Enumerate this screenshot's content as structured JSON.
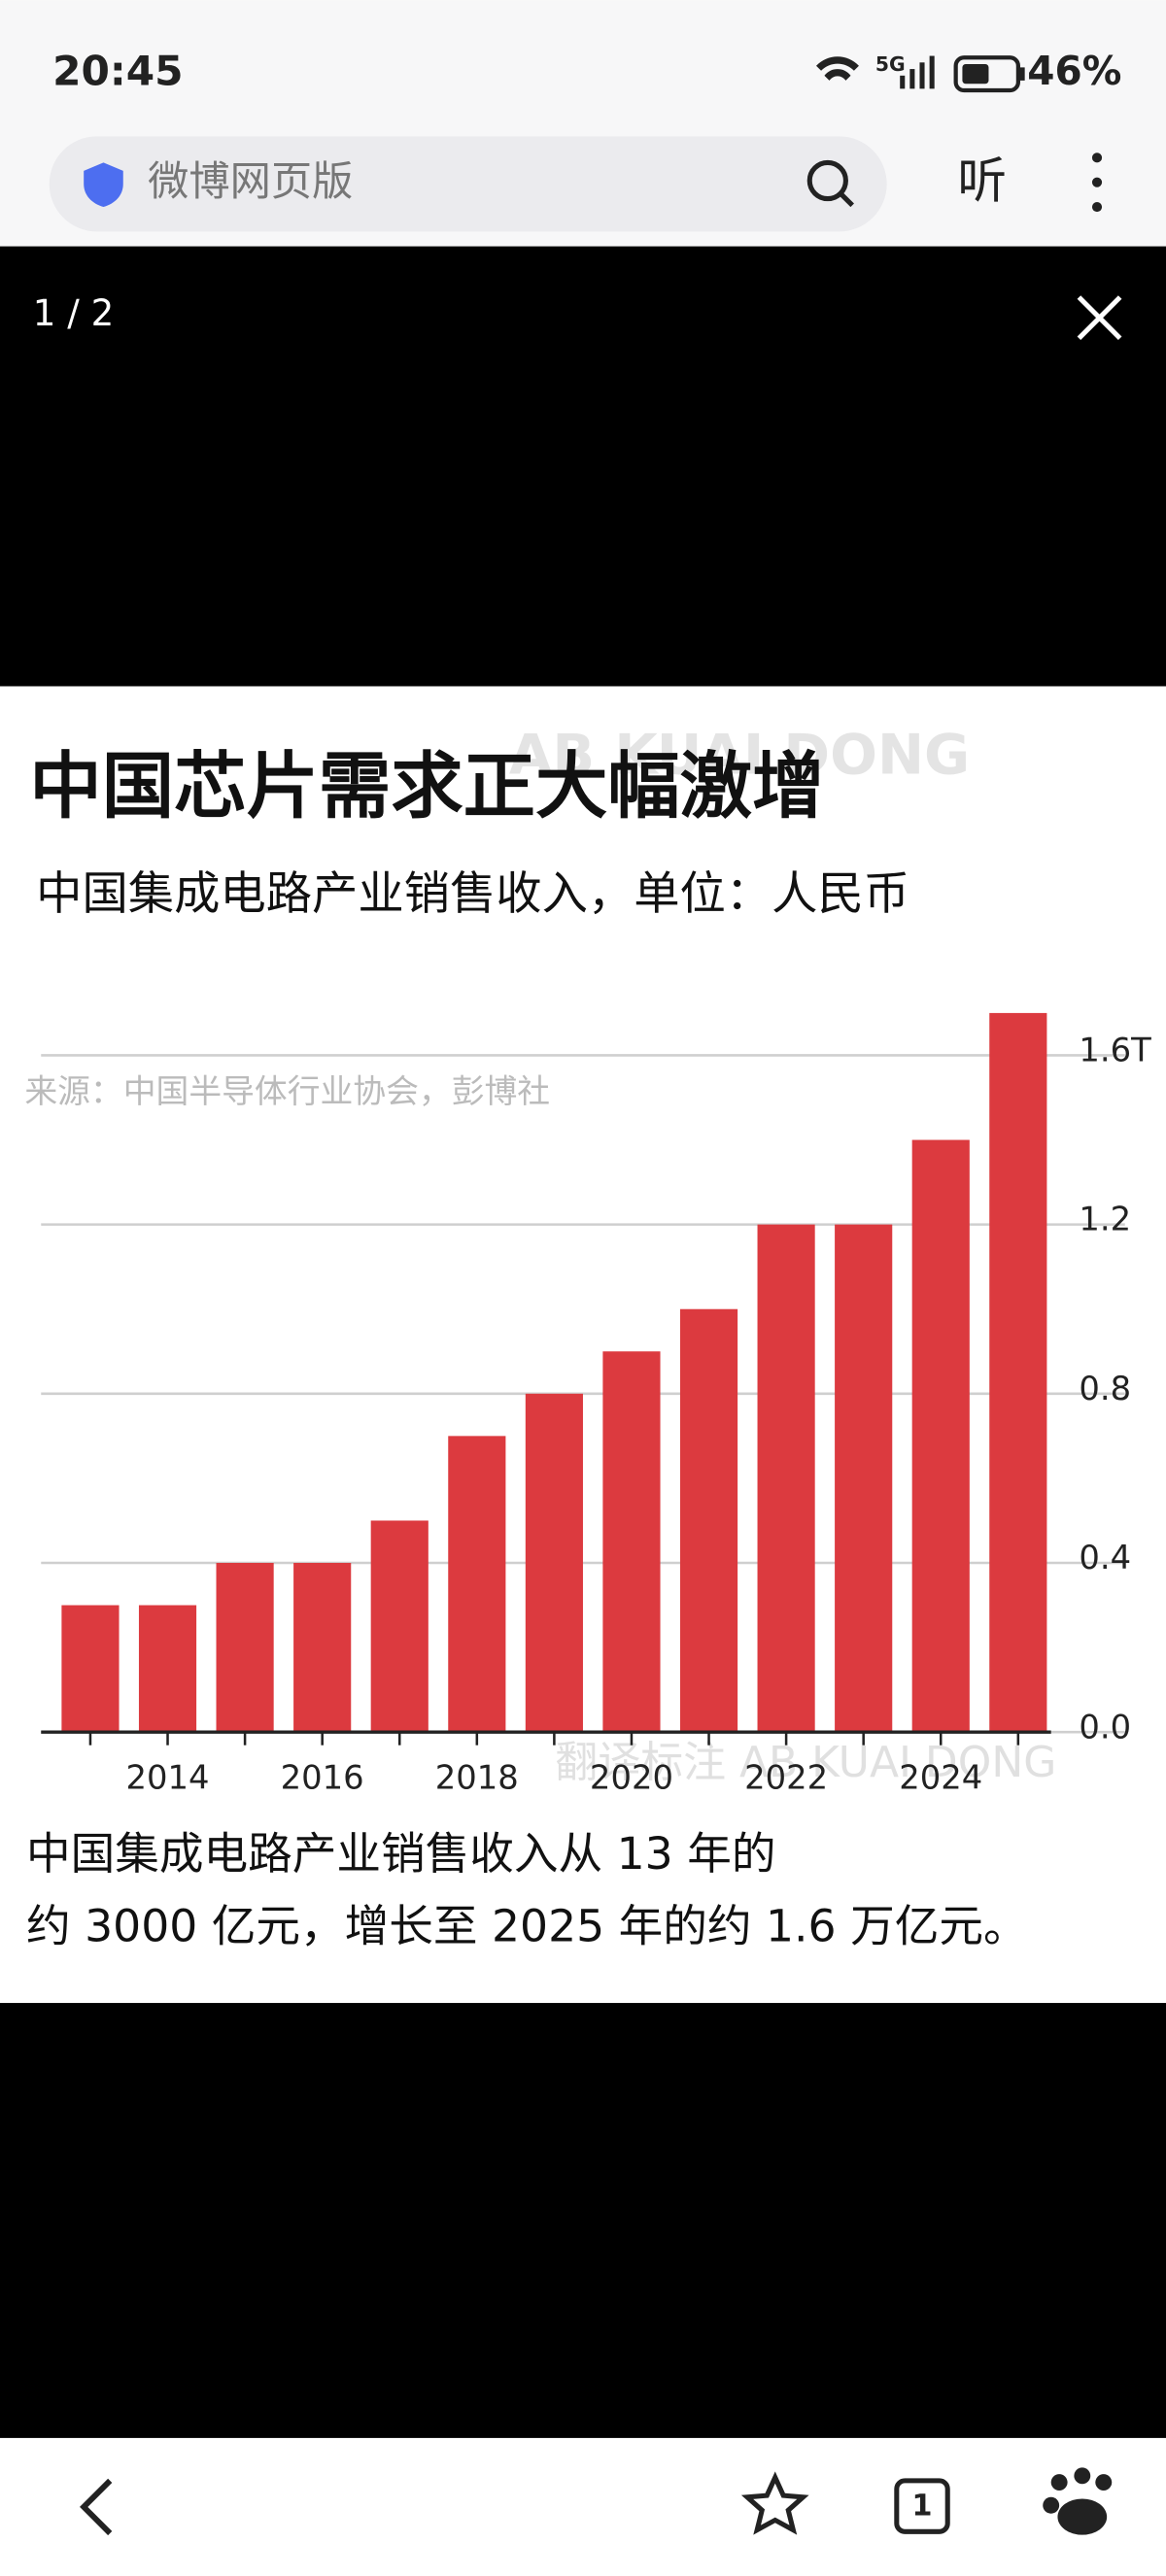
{
  "status_bar": {
    "time": "20:45",
    "network": "5G",
    "battery": "46%"
  },
  "browser_bar": {
    "address": "微博网页版",
    "listen": "听"
  },
  "viewer": {
    "counter": "1 / 2"
  },
  "chart_data": {
    "type": "bar",
    "title": "中国芯片需求正大幅激增",
    "subtitle": "中国集成电路产业销售收入，单位：人民币",
    "source": "来源：中国半导体行业协会，彭博社",
    "watermark": "AB KUAI DONG",
    "annotation": "翻译标注 AB KUAI DONG",
    "categories": [
      null,
      "2014",
      null,
      "2016",
      null,
      "2018",
      null,
      "2020",
      null,
      "2022",
      null,
      "2024",
      null
    ],
    "values": [
      0.3,
      0.3,
      0.4,
      0.4,
      0.5,
      0.7,
      0.8,
      0.9,
      1.0,
      1.2,
      1.2,
      1.4,
      1.7
    ],
    "color": "#dc3a3f",
    "ylim": [
      0,
      1.7
    ],
    "yticks": [
      {
        "value": 0,
        "label": "0.0"
      },
      0.4,
      0.8,
      1.2,
      {
        "value": 1.6,
        "label": "1.6T"
      }
    ],
    "grid": true,
    "axis_side": "right"
  },
  "caption": [
    "中国集成电路产业销售收入从 13 年的",
    "约 3000 亿元，增长至 2025 年的约 1.6 万亿元。"
  ],
  "bottom_nav": {
    "tabs": "1"
  }
}
